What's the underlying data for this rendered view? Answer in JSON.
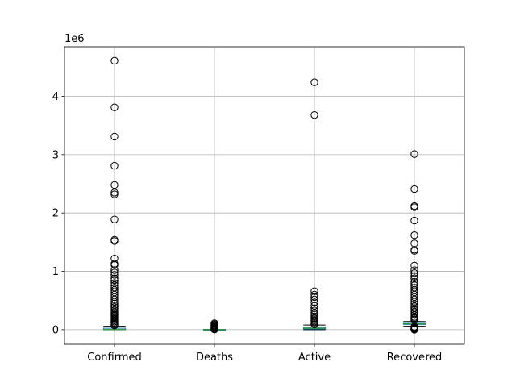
{
  "chart_data": {
    "type": "box",
    "title": "",
    "xlabel": "",
    "ylabel": "",
    "offset_label": "1e6",
    "grid": true,
    "ylim": [
      -250000,
      4850000
    ],
    "yticks": [
      0,
      1000000,
      2000000,
      3000000,
      4000000
    ],
    "ytick_labels": [
      "0",
      "1",
      "2",
      "3",
      "4"
    ],
    "colors": {
      "median": "#2ca02c",
      "box": "#1f77b4",
      "grid": "#b0b0b0"
    },
    "categories": [
      "Confirmed",
      "Deaths",
      "Active",
      "Recovered"
    ],
    "boxes": [
      {
        "name": "Confirmed",
        "q1": 1000,
        "median": 3000,
        "q3": 25000,
        "whisker_low": 0,
        "whisker_high": 60000,
        "outliers": [
          4610000,
          3810000,
          3310000,
          2810000,
          2480000,
          2350000,
          2320000,
          1890000,
          1540000,
          1520000,
          1220000,
          1130000,
          1110000,
          1020000,
          980000,
          940000,
          880000,
          850000,
          800000,
          760000,
          720000,
          680000,
          640000,
          600000,
          560000,
          520000,
          480000,
          450000,
          420000,
          390000,
          360000,
          330000,
          300000,
          280000,
          260000,
          240000,
          220000,
          200000,
          180000,
          160000,
          140000,
          120000,
          100000,
          85000,
          70000
        ]
      },
      {
        "name": "Deaths",
        "q1": 0,
        "median": 50,
        "q3": 600,
        "whisker_low": 0,
        "whisker_high": 1500,
        "outliers": [
          110000,
          95000,
          80000,
          68000,
          55000,
          45000,
          36000,
          28000,
          20000,
          14000,
          9000,
          5000,
          2500
        ]
      },
      {
        "name": "Active",
        "q1": 12000,
        "median": 25000,
        "q3": 42000,
        "whisker_low": 0,
        "whisker_high": 80000,
        "outliers": [
          4240000,
          3680000,
          660000,
          600000,
          560000,
          520000,
          470000,
          410000,
          370000,
          330000,
          290000,
          260000,
          230000,
          200000,
          180000,
          160000,
          140000,
          120000,
          100000,
          90000
        ]
      },
      {
        "name": "Recovered",
        "q1": 90000,
        "median": 100000,
        "q3": 110000,
        "whisker_low": 60000,
        "whisker_high": 140000,
        "outliers": [
          3010000,
          2410000,
          2120000,
          2100000,
          1870000,
          1620000,
          1480000,
          1370000,
          1350000,
          1100000,
          1020000,
          970000,
          920000,
          880000,
          820000,
          790000,
          760000,
          720000,
          680000,
          640000,
          600000,
          560000,
          520000,
          480000,
          440000,
          400000,
          370000,
          340000,
          310000,
          280000,
          250000,
          220000,
          200000,
          180000,
          160000,
          50000,
          40000,
          30000,
          20000,
          10000,
          5000,
          0
        ]
      }
    ]
  }
}
